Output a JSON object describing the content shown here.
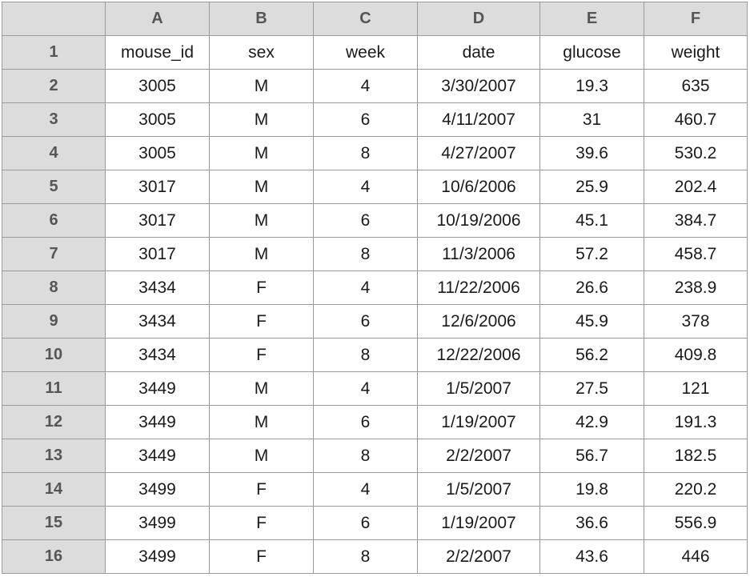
{
  "columns": [
    "A",
    "B",
    "C",
    "D",
    "E",
    "F"
  ],
  "rows": [
    {
      "n": "1",
      "cells": [
        "mouse_id",
        "sex",
        "week",
        "date",
        "glucose",
        "weight"
      ]
    },
    {
      "n": "2",
      "cells": [
        "3005",
        "M",
        "4",
        "3/30/2007",
        "19.3",
        "635"
      ]
    },
    {
      "n": "3",
      "cells": [
        "3005",
        "M",
        "6",
        "4/11/2007",
        "31",
        "460.7"
      ]
    },
    {
      "n": "4",
      "cells": [
        "3005",
        "M",
        "8",
        "4/27/2007",
        "39.6",
        "530.2"
      ]
    },
    {
      "n": "5",
      "cells": [
        "3017",
        "M",
        "4",
        "10/6/2006",
        "25.9",
        "202.4"
      ]
    },
    {
      "n": "6",
      "cells": [
        "3017",
        "M",
        "6",
        "10/19/2006",
        "45.1",
        "384.7"
      ]
    },
    {
      "n": "7",
      "cells": [
        "3017",
        "M",
        "8",
        "11/3/2006",
        "57.2",
        "458.7"
      ]
    },
    {
      "n": "8",
      "cells": [
        "3434",
        "F",
        "4",
        "11/22/2006",
        "26.6",
        "238.9"
      ]
    },
    {
      "n": "9",
      "cells": [
        "3434",
        "F",
        "6",
        "12/6/2006",
        "45.9",
        "378"
      ]
    },
    {
      "n": "10",
      "cells": [
        "3434",
        "F",
        "8",
        "12/22/2006",
        "56.2",
        "409.8"
      ]
    },
    {
      "n": "11",
      "cells": [
        "3449",
        "M",
        "4",
        "1/5/2007",
        "27.5",
        "121"
      ]
    },
    {
      "n": "12",
      "cells": [
        "3449",
        "M",
        "6",
        "1/19/2007",
        "42.9",
        "191.3"
      ]
    },
    {
      "n": "13",
      "cells": [
        "3449",
        "M",
        "8",
        "2/2/2007",
        "56.7",
        "182.5"
      ]
    },
    {
      "n": "14",
      "cells": [
        "3499",
        "F",
        "4",
        "1/5/2007",
        "19.8",
        "220.2"
      ]
    },
    {
      "n": "15",
      "cells": [
        "3499",
        "F",
        "6",
        "1/19/2007",
        "36.6",
        "556.9"
      ]
    },
    {
      "n": "16",
      "cells": [
        "3499",
        "F",
        "8",
        "2/2/2007",
        "43.6",
        "446"
      ]
    }
  ],
  "colors": {
    "header_bg": "#dcdcdc",
    "header_text": "#555555",
    "grid_line": "#9a9a9a",
    "cell_bg": "#ffffff",
    "cell_text": "#1a1a1a"
  }
}
